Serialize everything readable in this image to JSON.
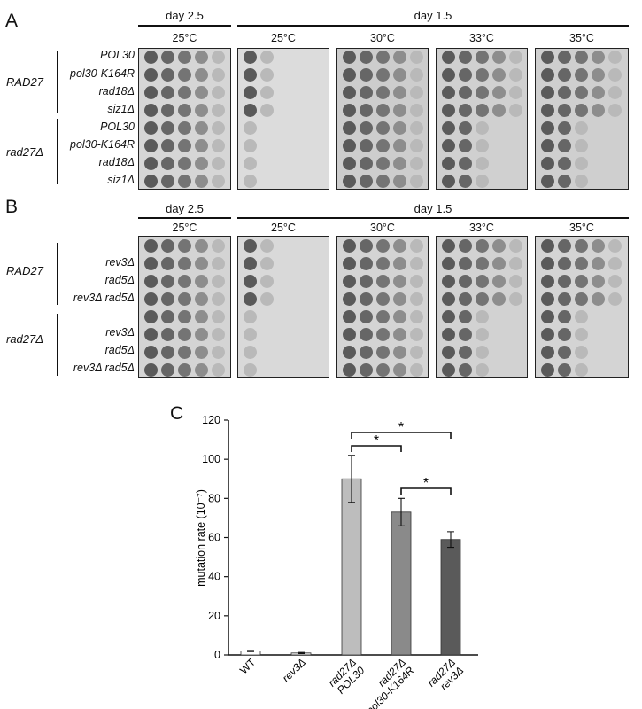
{
  "panel_a": {
    "letter": "A",
    "header_left": "day 2.5",
    "header_right": "day 1.5",
    "temps": [
      "25°C",
      "25°C",
      "30°C",
      "33°C",
      "35°C"
    ],
    "groups": [
      "RAD27",
      "rad27Δ"
    ],
    "strains": [
      "POL30",
      "pol30-K164R",
      "rad18Δ",
      "siz1Δ",
      "POL30",
      "pol30-K164R",
      "rad18Δ",
      "siz1Δ"
    ]
  },
  "panel_b": {
    "letter": "B",
    "header_left": "day 2.5",
    "header_right": "day 1.5",
    "temps": [
      "25°C",
      "25°C",
      "30°C",
      "33°C",
      "35°C"
    ],
    "groups": [
      "RAD27",
      "rad27Δ"
    ],
    "strains": [
      "rev3Δ",
      "rad5Δ",
      "rev3Δ rad5Δ",
      "rev3Δ",
      "rad5Δ",
      "rev3Δ rad5Δ"
    ]
  },
  "panel_c": {
    "letter": "C",
    "significance_marker": "*"
  },
  "chart_data": {
    "type": "bar",
    "categories": [
      [
        "WT"
      ],
      [
        "rev3Δ"
      ],
      [
        "rad27Δ",
        "POL30"
      ],
      [
        "rad27Δ",
        "pol30-K164R"
      ],
      [
        "rad27Δ",
        "rev3Δ"
      ]
    ],
    "values": [
      2,
      1,
      90,
      73,
      59
    ],
    "errors": [
      0.3,
      0.3,
      12,
      7,
      4
    ],
    "bar_colors": [
      "#ffffff",
      "#e6e6e6",
      "#bdbdbd",
      "#8a8a8a",
      "#5a5a5a"
    ],
    "ylabel": "mutation rate (10⁻⁷)",
    "xlabel": "",
    "ylim": [
      0,
      120
    ],
    "yticks": [
      0,
      20,
      40,
      60,
      80,
      100,
      120
    ],
    "significance": [
      {
        "from": 2,
        "to": 3,
        "label": "*"
      },
      {
        "from": 2,
        "to": 4,
        "label": "*"
      },
      {
        "from": 3,
        "to": 4,
        "label": "*"
      }
    ],
    "grid": false
  }
}
